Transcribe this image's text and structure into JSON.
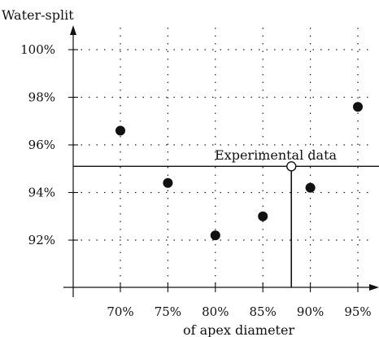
{
  "chart_data": {
    "type": "scatter",
    "ylabel": "Water-split",
    "xlabel": "of apex diameter",
    "x_ticks": [
      "70%",
      "75%",
      "80%",
      "85%",
      "90%",
      "95%"
    ],
    "y_ticks": [
      "92%",
      "94%",
      "96%",
      "98%",
      "100%"
    ],
    "xlim": [
      65,
      97
    ],
    "ylim": [
      90,
      100.8
    ],
    "grid": true,
    "x": [
      70,
      75,
      80,
      85,
      90,
      95
    ],
    "y": [
      96.6,
      94.4,
      92.2,
      93.0,
      94.2,
      97.6
    ],
    "annotation": {
      "label": "Experimental data",
      "x": 88,
      "y": 95.1
    }
  }
}
